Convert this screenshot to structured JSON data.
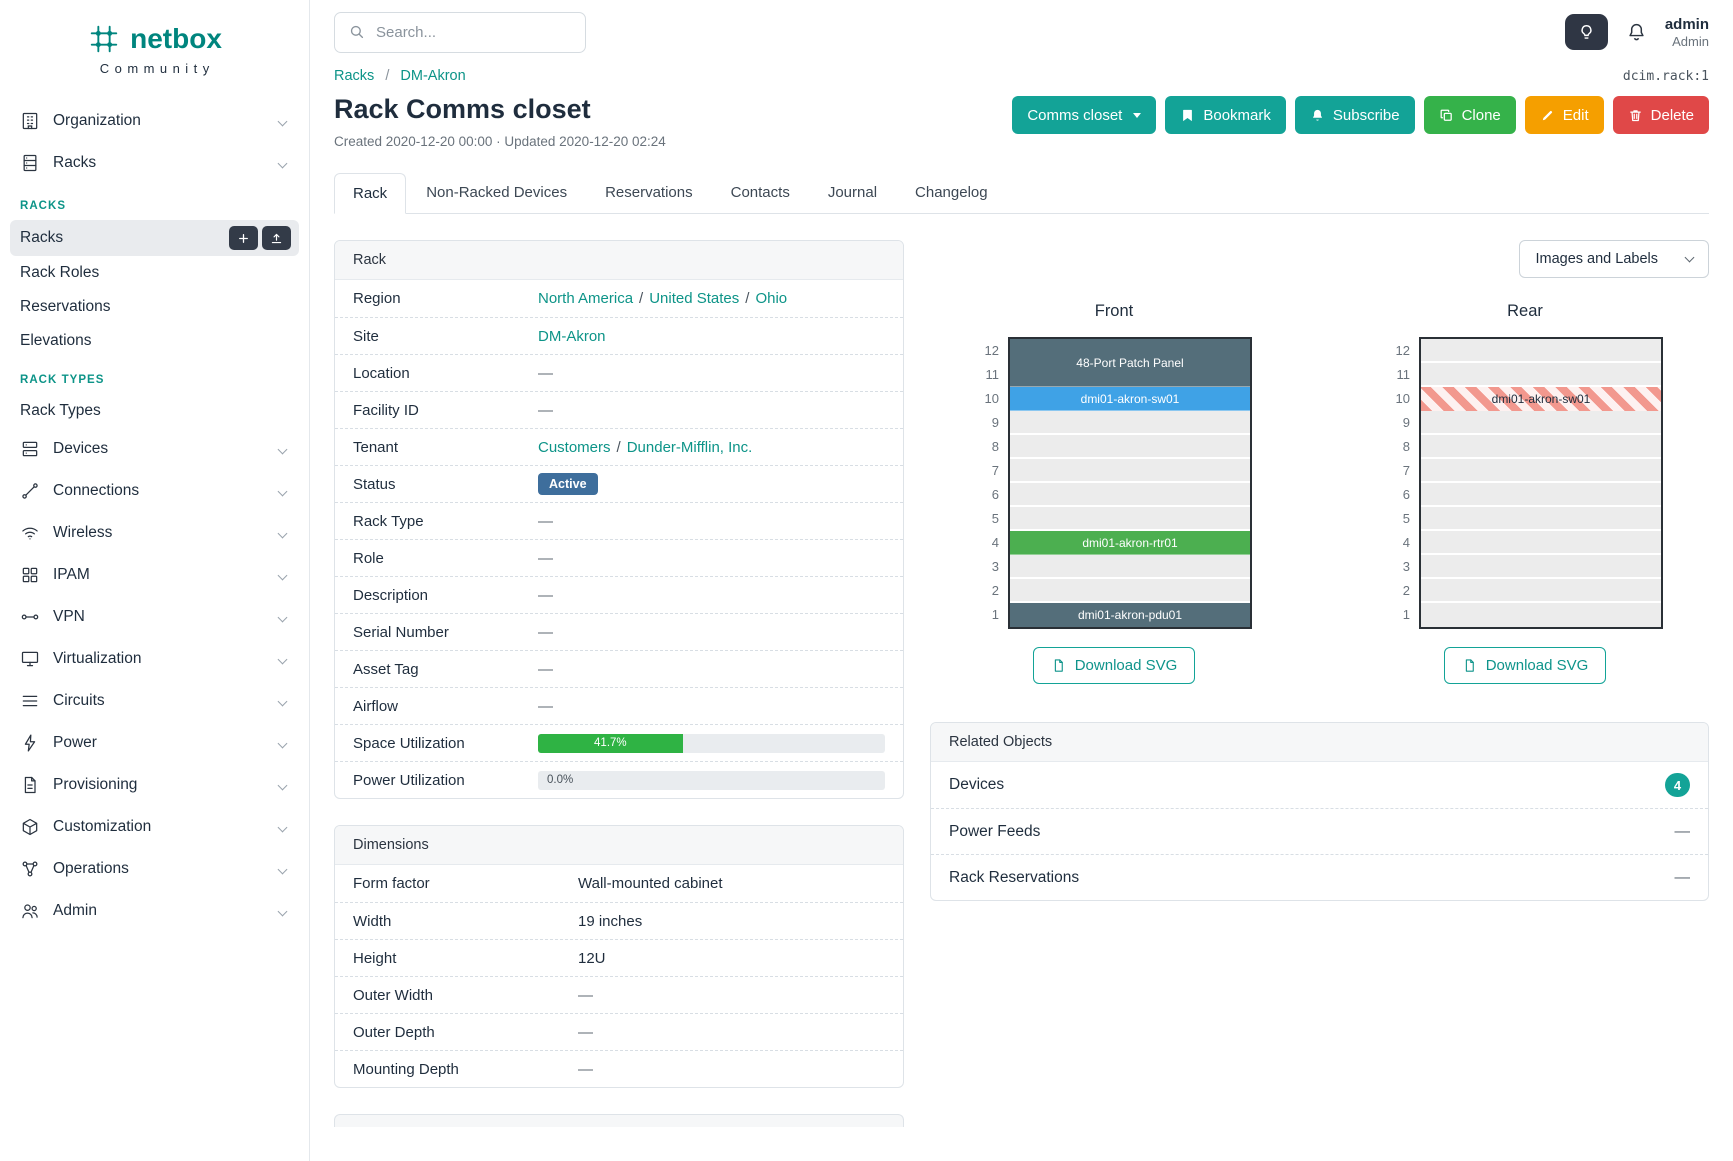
{
  "colors": {
    "teal_button": "#13a397",
    "green_button": "#35b24a",
    "yellow_button": "#f59f00",
    "red_button": "#e04848",
    "status_active": "#3e6e9c",
    "link": "#0d9488",
    "progress_green": "#2fb344",
    "count_badge": "#13a397"
  },
  "brand": {
    "name": "netbox",
    "tagline": "Community"
  },
  "topbar": {
    "search_placeholder": "Search...",
    "user": {
      "name": "admin",
      "role": "Admin"
    }
  },
  "sidebar": {
    "top_items": [
      {
        "label": "Organization"
      },
      {
        "label": "Racks"
      }
    ],
    "racks_menu": {
      "section_racks": "RACKS",
      "racks_item": "Racks",
      "items": [
        "Rack Roles",
        "Reservations",
        "Elevations"
      ],
      "section_rack_types": "RACK TYPES",
      "rack_types_item": "Rack Types"
    },
    "bottom_items": [
      {
        "label": "Devices"
      },
      {
        "label": "Connections"
      },
      {
        "label": "Wireless"
      },
      {
        "label": "IPAM"
      },
      {
        "label": "VPN"
      },
      {
        "label": "Virtualization"
      },
      {
        "label": "Circuits"
      },
      {
        "label": "Power"
      },
      {
        "label": "Provisioning"
      },
      {
        "label": "Customization"
      },
      {
        "label": "Operations"
      },
      {
        "label": "Admin"
      }
    ]
  },
  "page": {
    "breadcrumb": [
      "Racks",
      "DM-Akron"
    ],
    "object_ref": "dcim.rack:1",
    "title": "Rack Comms closet",
    "meta": "Created 2020-12-20 00:00 · Updated 2020-12-20 02:24",
    "actions": {
      "view_select": "Comms closet",
      "bookmark": "Bookmark",
      "subscribe": "Subscribe",
      "clone": "Clone",
      "edit": "Edit",
      "delete": "Delete"
    },
    "tabs": [
      {
        "label": "Rack"
      },
      {
        "label": "Non-Racked Devices"
      },
      {
        "label": "Reservations"
      },
      {
        "label": "Contacts"
      },
      {
        "label": "Journal"
      },
      {
        "label": "Changelog"
      }
    ]
  },
  "rack_card": {
    "title": "Rack",
    "region": {
      "label": "Region",
      "links": [
        "North America",
        "United States",
        "Ohio"
      ]
    },
    "site": {
      "label": "Site",
      "link": "DM-Akron"
    },
    "location": {
      "label": "Location",
      "value": "—"
    },
    "facility_id": {
      "label": "Facility ID",
      "value": "—"
    },
    "tenant": {
      "label": "Tenant",
      "links": [
        "Customers",
        "Dunder-Mifflin, Inc."
      ]
    },
    "status": {
      "label": "Status",
      "badge": "Active"
    },
    "rack_type": {
      "label": "Rack Type",
      "value": "—"
    },
    "role": {
      "label": "Role",
      "value": "—"
    },
    "description": {
      "label": "Description",
      "value": "—"
    },
    "serial_number": {
      "label": "Serial Number",
      "value": "—"
    },
    "asset_tag": {
      "label": "Asset Tag",
      "value": "—"
    },
    "airflow": {
      "label": "Airflow",
      "value": "—"
    },
    "space_utilization": {
      "label": "Space Utilization",
      "percent": 41.7,
      "text": "41.7%"
    },
    "power_utilization": {
      "label": "Power Utilization",
      "percent": 0,
      "text": "0.0%"
    }
  },
  "dimensions_card": {
    "title": "Dimensions",
    "rows": [
      {
        "label": "Form factor",
        "value": "Wall-mounted cabinet"
      },
      {
        "label": "Width",
        "value": "19 inches"
      },
      {
        "label": "Height",
        "value": "12U"
      },
      {
        "label": "Outer Width",
        "value": "—"
      },
      {
        "label": "Outer Depth",
        "value": "—"
      },
      {
        "label": "Mounting Depth",
        "value": "—"
      }
    ]
  },
  "elevations": {
    "view_select": "Images and Labels",
    "unit_numbers": [
      "12",
      "11",
      "10",
      "9",
      "8",
      "7",
      "6",
      "5",
      "4",
      "3",
      "2",
      "1"
    ],
    "download_label": "Download SVG",
    "front": {
      "title": "Front",
      "patch_panel": {
        "label": "48-Port Patch Panel",
        "color": "#546e7a",
        "units": 2
      },
      "sw01": {
        "label": "dmi01-akron-sw01",
        "color": "#3fa2e6"
      },
      "rtr01": {
        "label": "dmi01-akron-rtr01",
        "color": "#4caf50"
      },
      "pdu01": {
        "label": "dmi01-akron-pdu01",
        "color": "#546e7a"
      }
    },
    "rear": {
      "title": "Rear",
      "sw01": {
        "label": "dmi01-akron-sw01"
      }
    }
  },
  "related_objects": {
    "title": "Related Objects",
    "rows": [
      {
        "label": "Devices",
        "count": "4"
      },
      {
        "label": "Power Feeds",
        "value": "—"
      },
      {
        "label": "Rack Reservations",
        "value": "—"
      }
    ]
  }
}
